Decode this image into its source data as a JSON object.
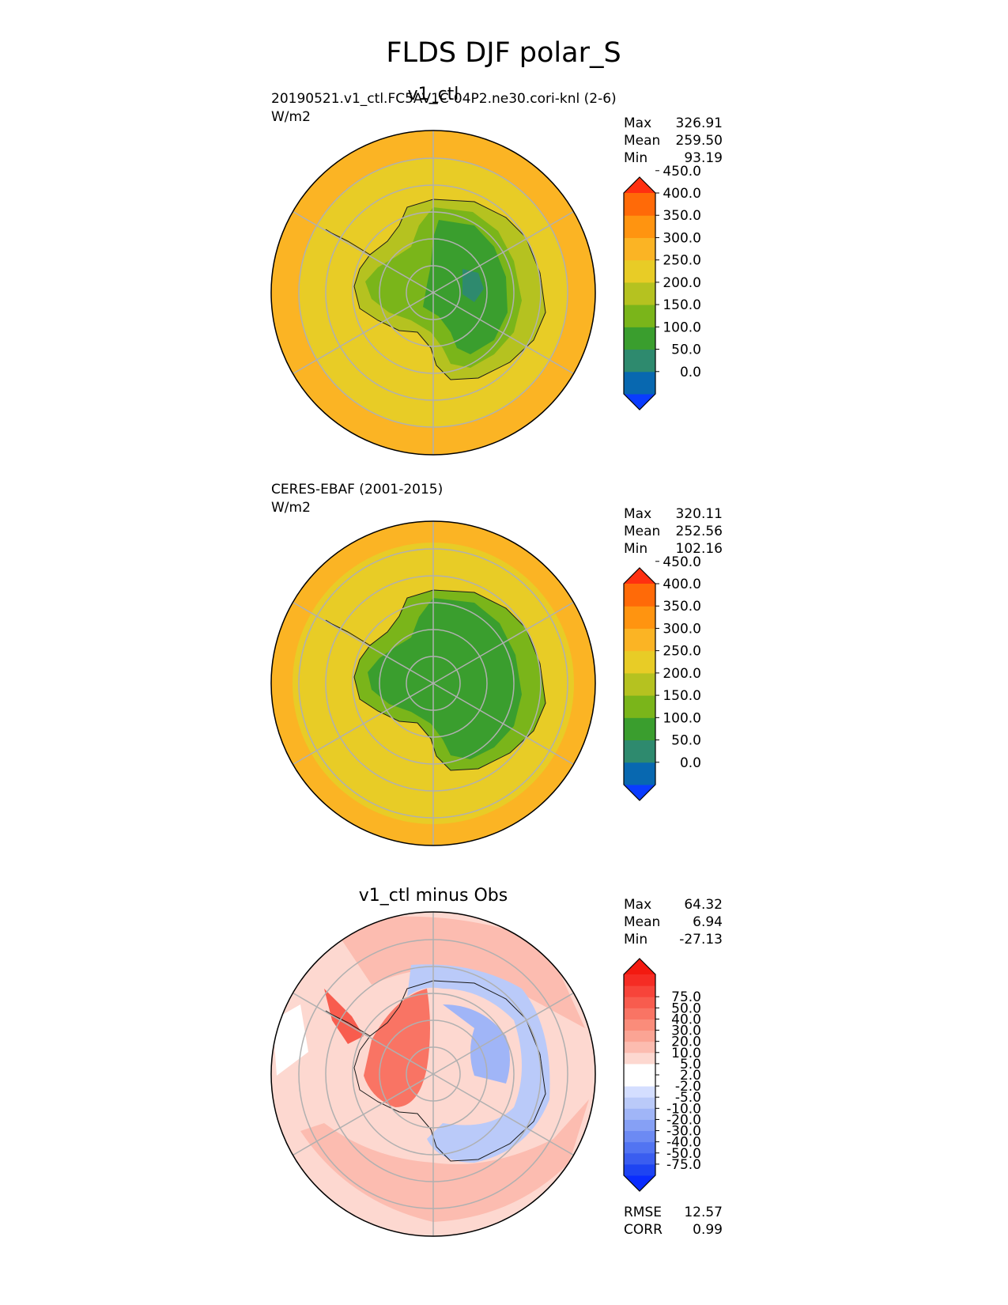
{
  "figure": {
    "title": "FLDS DJF polar_S"
  },
  "panels": [
    {
      "id": "test",
      "title": "v1_ctl",
      "left_label": "20190521.v1_ctl.FC5AV1C-04P2.ne30.cori-knl (2-6)",
      "units": "W/m2",
      "stats": [
        {
          "label": "Max",
          "value": "326.91"
        },
        {
          "label": "Mean",
          "value": "259.50"
        },
        {
          "label": "Min",
          "value": "93.19"
        }
      ],
      "colorbar": {
        "colors": [
          "#0a3cff",
          "#0868b0",
          "#2e8a6e",
          "#3a9e2e",
          "#7ab51a",
          "#b5c220",
          "#e8cc26",
          "#fbb424",
          "#ff9410",
          "#ff6a08",
          "#ff3010"
        ],
        "ticks": [
          "0.0",
          "50.0",
          "100.0",
          "150.0",
          "200.0",
          "250.0",
          "300.0",
          "350.0",
          "400.0",
          "450.0"
        ]
      }
    },
    {
      "id": "ref",
      "title": "",
      "left_label": "CERES-EBAF (2001-2015)",
      "units": "W/m2",
      "stats": [
        {
          "label": "Max",
          "value": "320.11"
        },
        {
          "label": "Mean",
          "value": "252.56"
        },
        {
          "label": "Min",
          "value": "102.16"
        }
      ],
      "colorbar": {
        "colors": [
          "#0a3cff",
          "#0868b0",
          "#2e8a6e",
          "#3a9e2e",
          "#7ab51a",
          "#b5c220",
          "#e8cc26",
          "#fbb424",
          "#ff9410",
          "#ff6a08",
          "#ff3010"
        ],
        "ticks": [
          "0.0",
          "50.0",
          "100.0",
          "150.0",
          "200.0",
          "250.0",
          "300.0",
          "350.0",
          "400.0",
          "450.0"
        ]
      }
    },
    {
      "id": "diff",
      "title": "v1_ctl minus Obs",
      "left_label": "",
      "units": "",
      "stats": [
        {
          "label": "Max",
          "value": "64.32"
        },
        {
          "label": "Mean",
          "value": "6.94"
        },
        {
          "label": "Min",
          "value": "-27.13"
        }
      ],
      "bottom_stats": [
        {
          "label": "RMSE",
          "value": "12.57"
        },
        {
          "label": "CORR",
          "value": "0.99"
        }
      ],
      "colorbar": {
        "colors": [
          "#0a2cff",
          "#1e44f2",
          "#3a5df0",
          "#5274f2",
          "#6c8af3",
          "#86a0f5",
          "#a0b5f7",
          "#bacaf9",
          "#d4deff",
          "#ffffff",
          "#ffffff",
          "#fdd8d0",
          "#fcbcb0",
          "#fba494",
          "#fa8c7a",
          "#f97464",
          "#f85c4e",
          "#f7443a",
          "#f52c24",
          "#f31a10"
        ],
        "ticks": [
          "-75.0",
          "-50.0",
          "-40.0",
          "-30.0",
          "-20.0",
          "-10.0",
          "-5.0",
          "-2.0",
          "2.0",
          "5.0",
          "10.0",
          "20.0",
          "30.0",
          "40.0",
          "50.0",
          "75.0"
        ]
      }
    }
  ]
}
